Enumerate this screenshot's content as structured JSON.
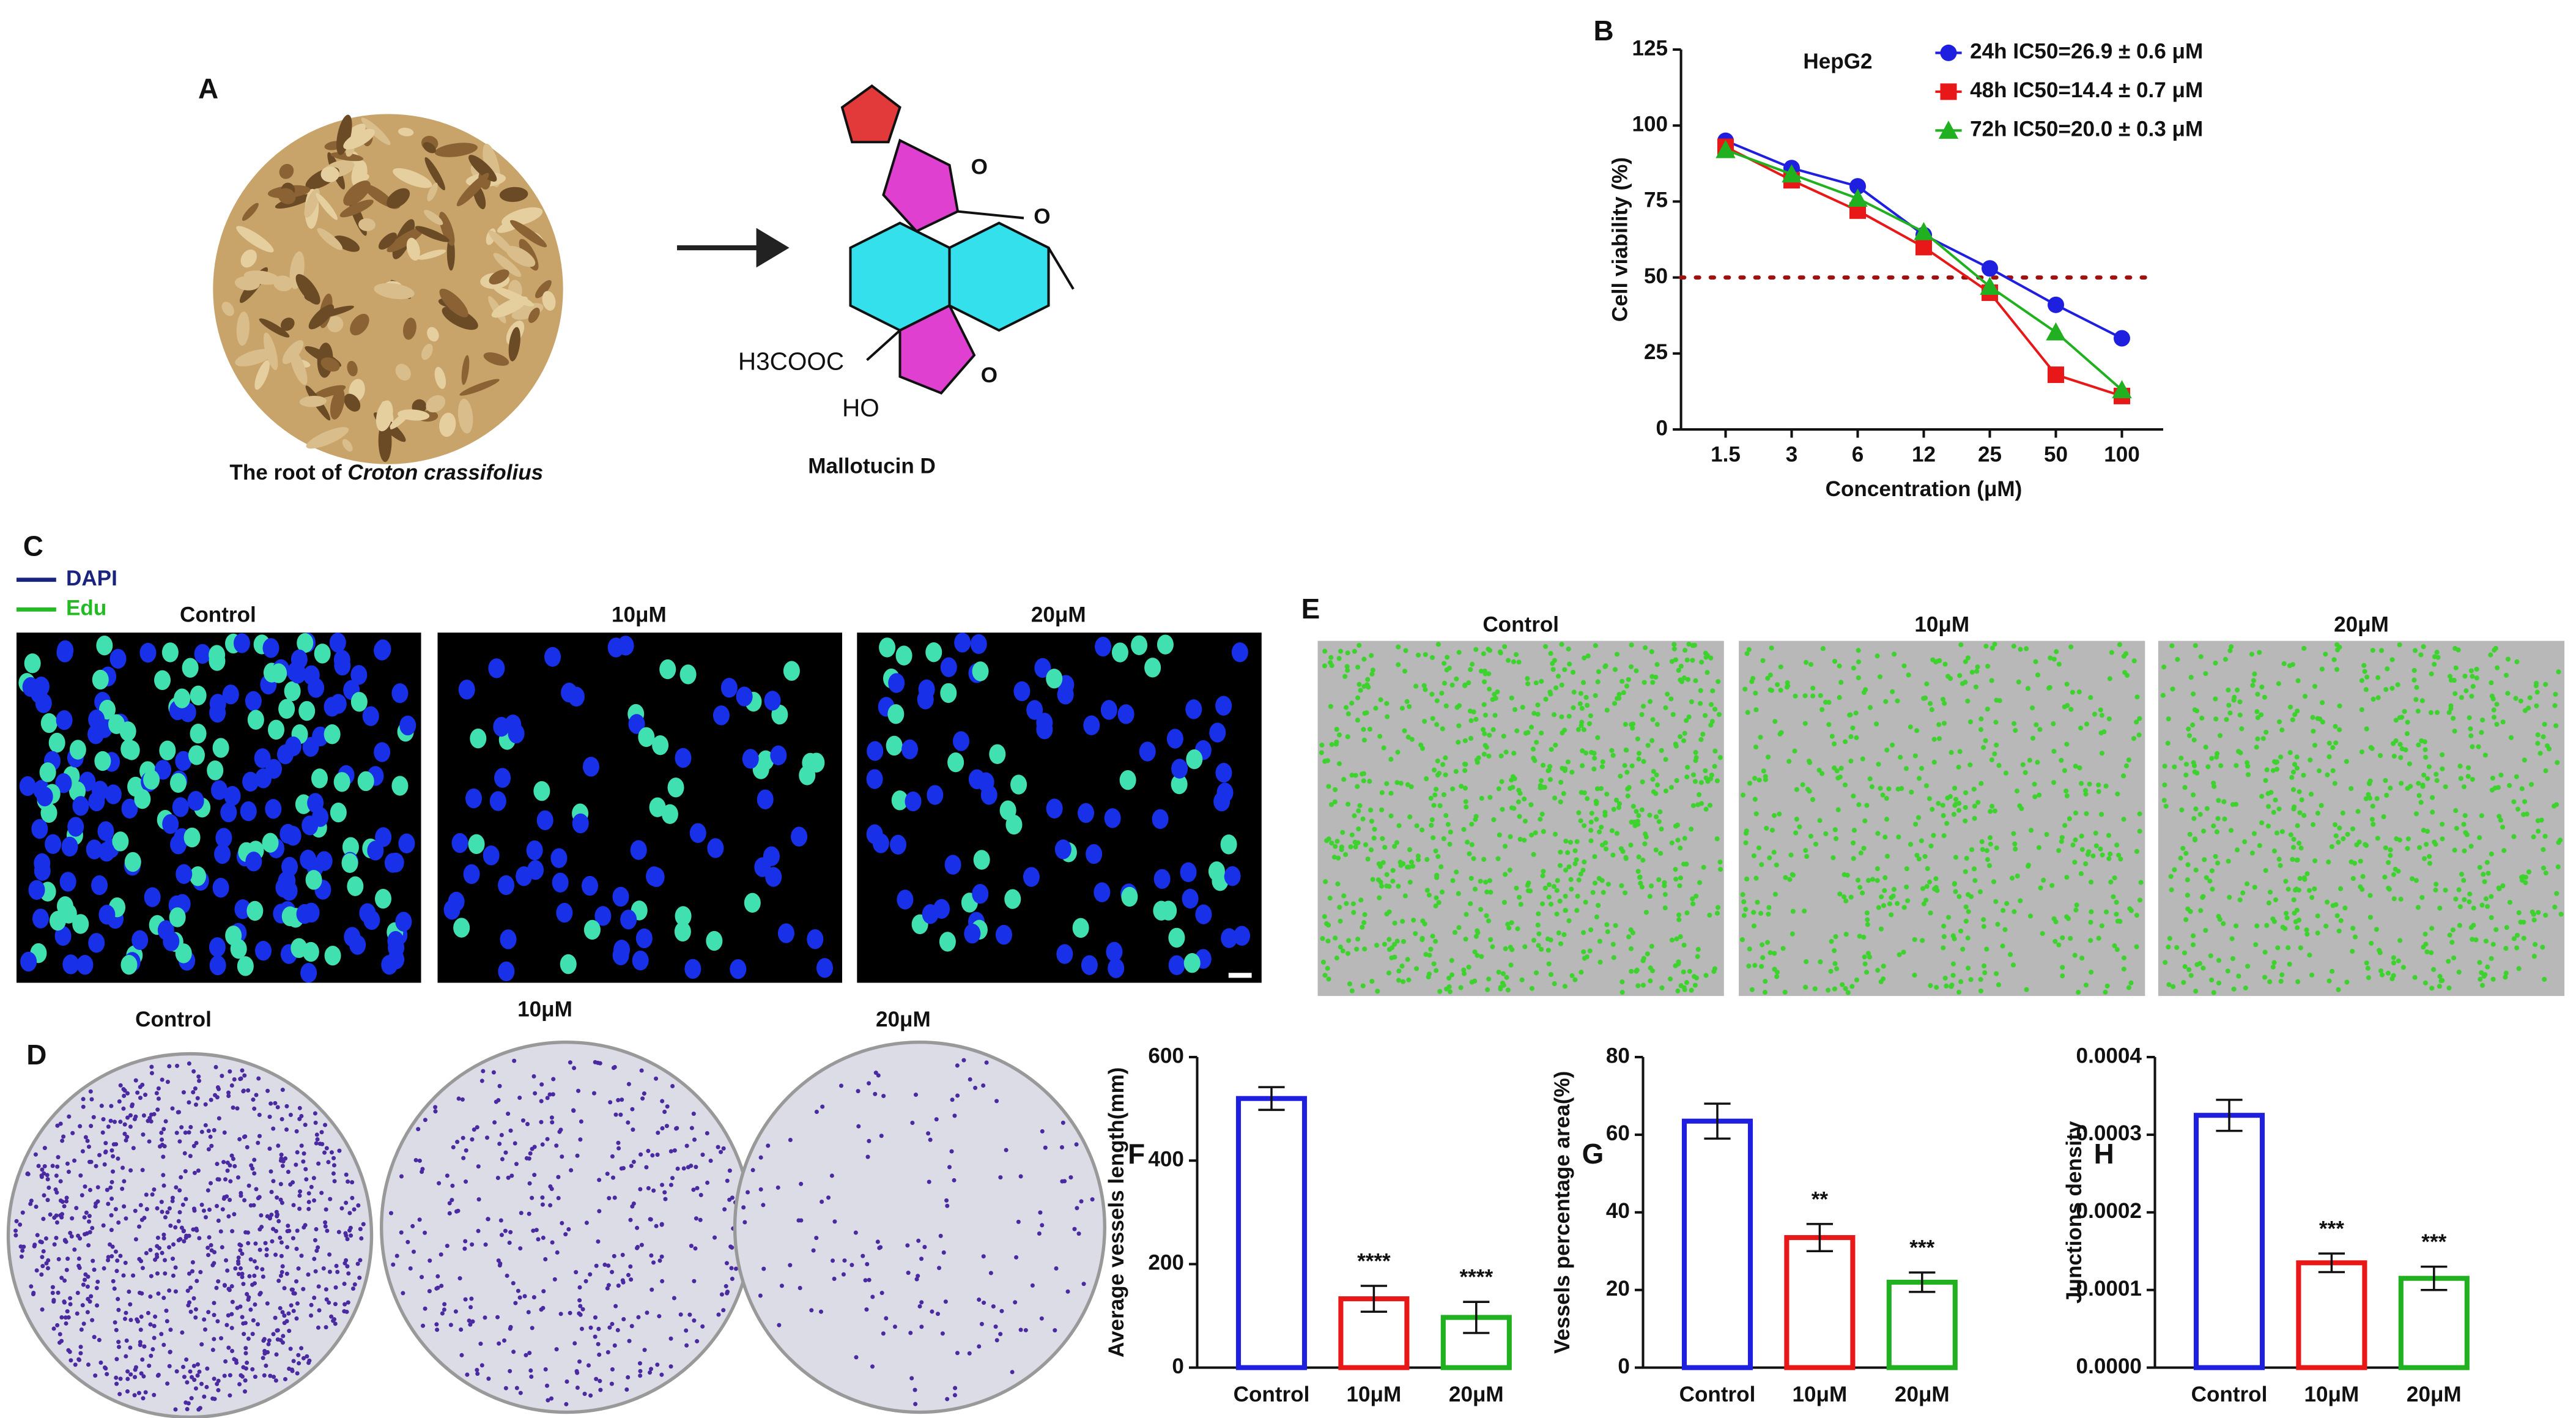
{
  "panels": {
    "letters": [
      "A",
      "B",
      "C",
      "D",
      "E",
      "F",
      "G",
      "H"
    ],
    "caption_a": [
      "The root of ",
      "Croton crassifolius"
    ],
    "compound": "Mallotucin D",
    "structure_labels": [
      "O",
      "O",
      "O",
      "H3COOC",
      "HO"
    ],
    "stain_legend": [
      "DAPI",
      "Edu"
    ],
    "conditions_c": [
      "Control",
      "10μM",
      "20μM"
    ],
    "conditions_d": [
      "Control",
      "10μM",
      "20μM"
    ],
    "conditions_e": [
      "Control",
      "10μM",
      "20μM"
    ]
  },
  "chart_data": [
    {
      "type": "line",
      "annotation": "HepG2",
      "xlabel": "Concentration (μM)",
      "ylabel": "Cell viability (%)",
      "categories": [
        "1.5",
        "3",
        "6",
        "12",
        "25",
        "50",
        "100"
      ],
      "ylim": [
        0,
        125
      ],
      "yticks": [
        0,
        25,
        50,
        75,
        100,
        125
      ],
      "hline": 50,
      "hline_color": "#a01010",
      "series": [
        {
          "name": "24h IC50=26.9 ± 0.6 μM",
          "color": "#1f1fe0",
          "marker": "circle",
          "values": [
            95,
            86,
            80,
            64,
            53,
            41,
            30
          ]
        },
        {
          "name": "48h IC50=14.4 ± 0.7 μM",
          "color": "#e81818",
          "marker": "square",
          "values": [
            93,
            82,
            72,
            60,
            45,
            18,
            11
          ]
        },
        {
          "name": "72h IC50=20.0 ± 0.3 μM",
          "color": "#20b020",
          "marker": "triangle",
          "values": [
            92,
            84,
            76,
            65,
            47,
            32,
            13
          ]
        }
      ]
    },
    {
      "type": "bar",
      "ylabel": "Average vessels length(mm)",
      "categories": [
        "Control",
        "10μM",
        "20μM"
      ],
      "values": [
        520,
        133,
        97
      ],
      "errors": [
        22,
        25,
        30
      ],
      "colors": [
        "#1f1fe0",
        "#e81818",
        "#20b020"
      ],
      "significance": [
        null,
        "****",
        "****"
      ],
      "ylim": [
        0,
        600
      ],
      "yticks": [
        0,
        200,
        400,
        600
      ]
    },
    {
      "type": "bar",
      "ylabel": "Vessels percentage area(%)",
      "categories": [
        "Control",
        "10μM",
        "20μM"
      ],
      "values": [
        63.5,
        33.5,
        22
      ],
      "errors": [
        4.5,
        3.5,
        2.5
      ],
      "colors": [
        "#1f1fe0",
        "#e81818",
        "#20b020"
      ],
      "significance": [
        null,
        "**",
        "***"
      ],
      "ylim": [
        0,
        80
      ],
      "yticks": [
        0,
        20,
        40,
        60,
        80
      ]
    },
    {
      "type": "bar",
      "ylabel": "Junctions density",
      "categories": [
        "Control",
        "10μM",
        "20μM"
      ],
      "values": [
        0.000325,
        0.000135,
        0.000115
      ],
      "errors": [
        2e-05,
        1.2e-05,
        1.5e-05
      ],
      "colors": [
        "#1f1fe0",
        "#e81818",
        "#20b020"
      ],
      "significance": [
        null,
        "***",
        "***"
      ],
      "ylim": [
        0,
        0.0004
      ],
      "yticks": [
        {
          "value": 0,
          "label": "0.0000"
        },
        {
          "value": 0.0001,
          "label": "0.0001"
        },
        {
          "value": 0.0002,
          "label": "0.0002"
        },
        {
          "value": 0.0003,
          "label": "0.0003"
        },
        {
          "value": 0.0004,
          "label": "0.0004"
        }
      ]
    }
  ]
}
